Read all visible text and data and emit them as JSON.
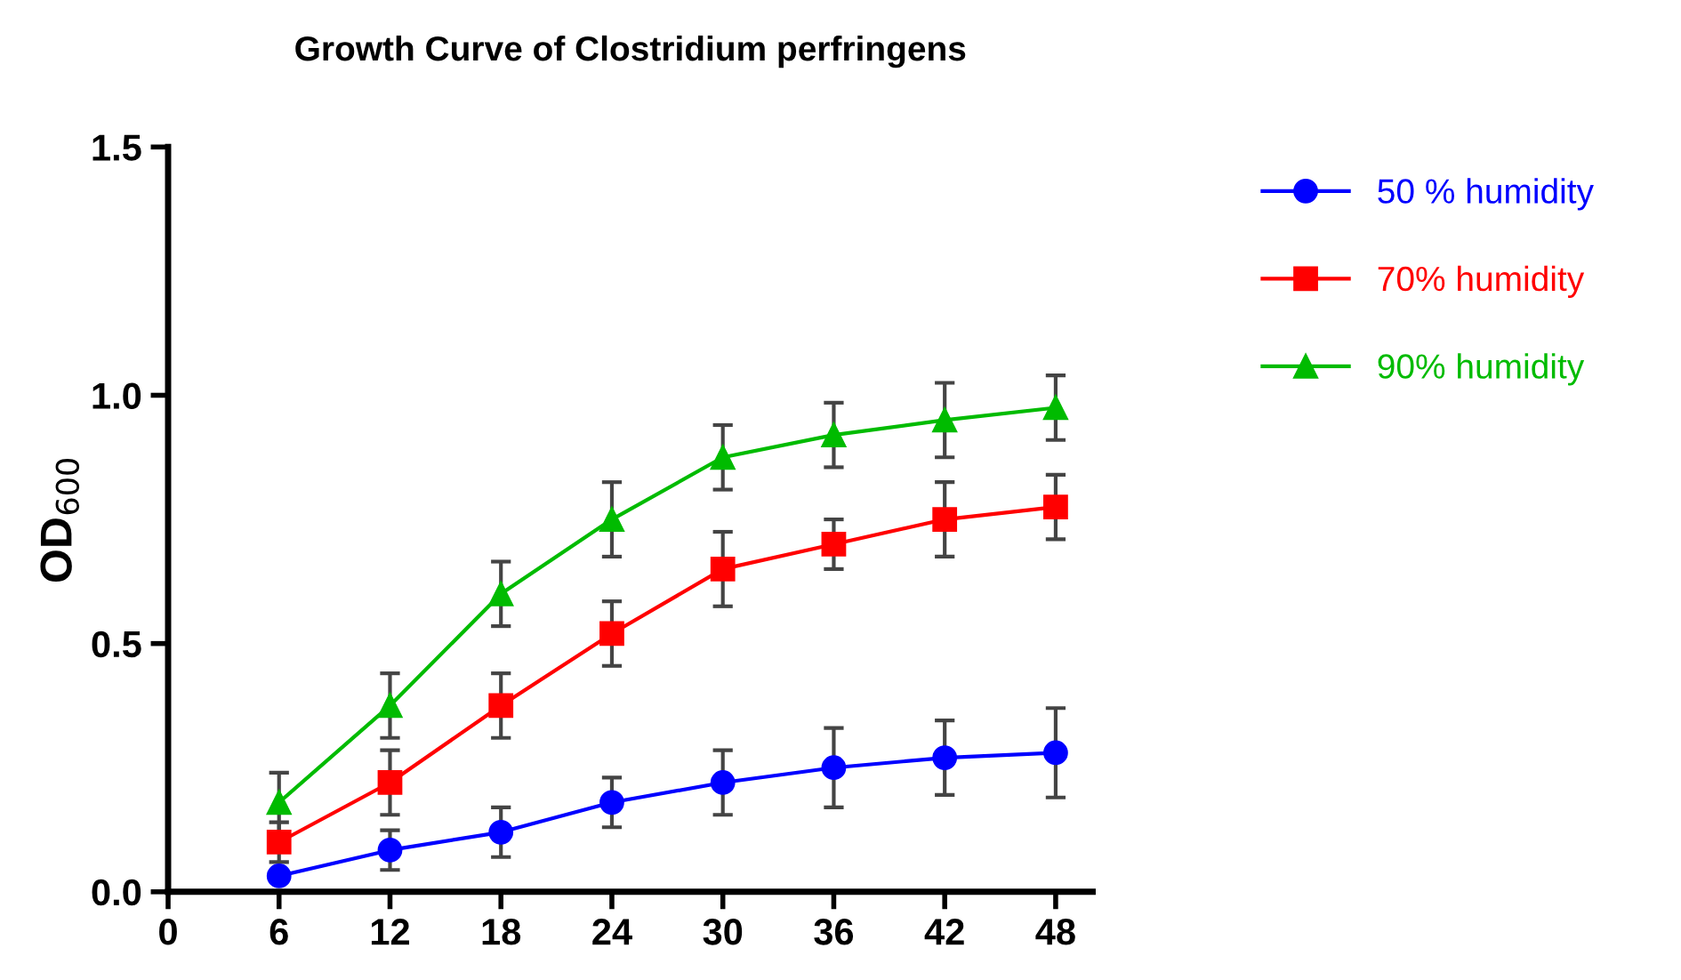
{
  "chart_data": {
    "type": "line",
    "title": "Growth Curve of Clostridium perfringens",
    "ylabel": "OD$_{600}$",
    "x": [
      6,
      12,
      18,
      24,
      30,
      36,
      42,
      48
    ],
    "xlim": [
      0,
      50
    ],
    "xticks": [
      0,
      6,
      12,
      18,
      24,
      30,
      36,
      42,
      48
    ],
    "ylim": [
      0,
      1.5
    ],
    "yticks": [
      {
        "value": 0,
        "label": "0.0"
      },
      {
        "value": 0.5,
        "label": "0.5"
      },
      {
        "value": 1.0,
        "label": "1.0"
      },
      {
        "value": 1.5,
        "label": "1.5"
      }
    ],
    "grid": false,
    "legend": "top right",
    "series": [
      {
        "name": "50 % humidity",
        "color": "#0000ff",
        "marker": "circle",
        "values": [
          0.032,
          0.084,
          0.12,
          0.18,
          0.22,
          0.25,
          0.27,
          0.28
        ],
        "errors": [
          null,
          0.04,
          0.05,
          0.05,
          0.065,
          0.08,
          0.075,
          0.09
        ]
      },
      {
        "name": "70% humidity",
        "color": "#ff0000",
        "marker": "square",
        "values": [
          0.1,
          0.22,
          0.375,
          0.52,
          0.65,
          0.7,
          0.75,
          0.775
        ],
        "errors": [
          0.04,
          0.065,
          0.065,
          0.065,
          0.075,
          0.05,
          0.075,
          0.065
        ]
      },
      {
        "name": "90% humidity",
        "color": "#00bb00",
        "marker": "triangle",
        "values": [
          0.18,
          0.375,
          0.6,
          0.75,
          0.875,
          0.92,
          0.95,
          0.975
        ],
        "errors": [
          0.06,
          0.065,
          0.065,
          0.075,
          0.065,
          0.065,
          0.075,
          0.065
        ]
      }
    ]
  }
}
